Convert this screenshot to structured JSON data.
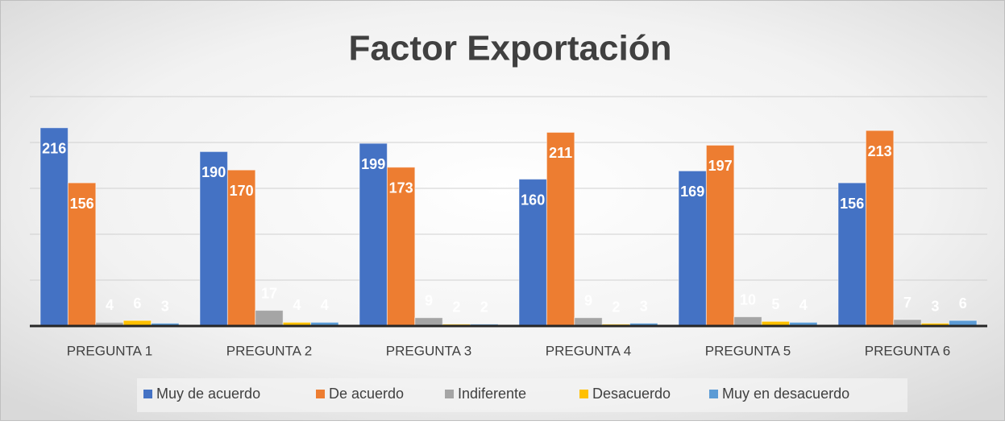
{
  "chart_data": {
    "type": "bar",
    "title": "Factor Exportación",
    "categories": [
      "PREGUNTA 1",
      "PREGUNTA 2",
      "PREGUNTA 3",
      "PREGUNTA 4",
      "PREGUNTA 5",
      "PREGUNTA 6"
    ],
    "series": [
      {
        "name": "Muy de acuerdo",
        "color": "#4472c4",
        "values": [
          216,
          190,
          199,
          160,
          169,
          156
        ]
      },
      {
        "name": "De acuerdo",
        "color": "#ed7d31",
        "values": [
          156,
          170,
          173,
          211,
          197,
          213
        ]
      },
      {
        "name": "Indiferente",
        "color": "#a5a5a5",
        "values": [
          4,
          17,
          9,
          9,
          10,
          7
        ]
      },
      {
        "name": "Desacuerdo",
        "color": "#ffc000",
        "values": [
          6,
          4,
          2,
          2,
          5,
          3
        ]
      },
      {
        "name": "Muy en desacuerdo",
        "color": "#5b9bd5",
        "values": [
          3,
          4,
          2,
          3,
          4,
          6
        ]
      }
    ],
    "ylim": [
      0,
      250
    ],
    "yticks": [
      0,
      50,
      100,
      150,
      200,
      250
    ],
    "grid": true,
    "legend": "bottom"
  }
}
